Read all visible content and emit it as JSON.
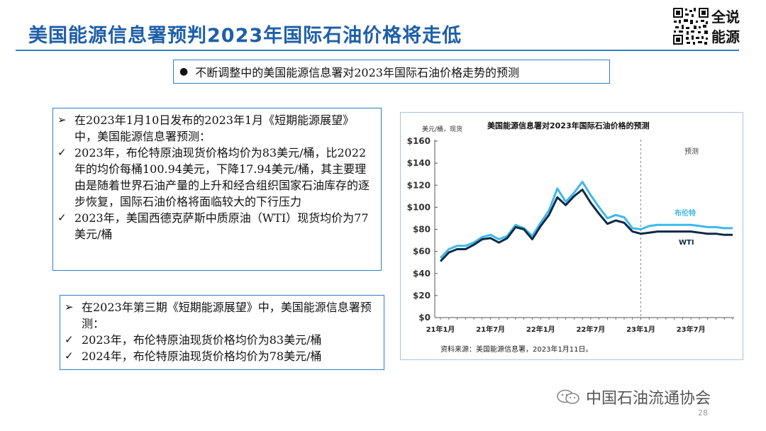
{
  "slide": {
    "title": "美国能源信息署预判2023年国际石油价格将走低",
    "logo_line1": "全说",
    "logo_line2": "能源",
    "subtitle": "不断调整中的美国能源信息署对2023年国际石油价格走势的预测",
    "box1": {
      "items": [
        {
          "mark": "➢",
          "text": "在2023年1月10日发布的2023年1月《短期能源展望》中，美国能源信息署预测："
        },
        {
          "mark": "✓",
          "text": "2023年，布伦特原油现货价格均价为83美元/桶，比2022年的均价每桶100.94美元，下降17.94美元/桶，其主要理由是随着世界石油产量的上升和经合组织国家石油库存的逐步恢复，国际石油价格将面临较大的下行压力"
        },
        {
          "mark": "✓",
          "text": "2023年，美国西德克萨斯中质原油（WTI）现货均价为77美元/桶"
        }
      ]
    },
    "box2": {
      "items": [
        {
          "mark": "➢",
          "text": "在2023年第三期《短期能源展望》中，美国能源信息署预测："
        },
        {
          "mark": "✓",
          "text": "2023年，布伦特原油现货价格均价为83美元/桶"
        },
        {
          "mark": "✓",
          "text": "2024年，布伦特原油现货价格均价为78美元/桶"
        }
      ]
    },
    "footer_brand": "中国石油流通协会",
    "page_number": "28"
  },
  "colors": {
    "title": "#1f5fa8",
    "brent": "#3db8ea",
    "wti": "#0d2a47",
    "forecast_line": "#8a8a8a"
  },
  "chart_data": {
    "type": "line",
    "title": "美国能源信息署对2023年国际石油价格的预测",
    "ylabel": "美元/桶，现货",
    "ylim": [
      0,
      160
    ],
    "yticks": [
      0,
      20,
      40,
      60,
      80,
      100,
      120,
      140,
      160
    ],
    "ytick_labels": [
      "$0",
      "$20",
      "$40",
      "$60",
      "$80",
      "$100",
      "$120",
      "$140",
      "$160"
    ],
    "x": [
      "21-01",
      "21-02",
      "21-03",
      "21-04",
      "21-05",
      "21-06",
      "21-07",
      "21-08",
      "21-09",
      "21-10",
      "21-11",
      "21-12",
      "22-01",
      "22-02",
      "22-03",
      "22-04",
      "22-05",
      "22-06",
      "22-07",
      "22-08",
      "22-09",
      "22-10",
      "22-11",
      "22-12",
      "23-01",
      "23-02",
      "23-03",
      "23-04",
      "23-05",
      "23-06",
      "23-07",
      "23-08",
      "23-09",
      "23-10",
      "23-11",
      "23-12"
    ],
    "xtick_labels": [
      {
        "index": 0,
        "label": "21年1月"
      },
      {
        "index": 6,
        "label": "21年7月"
      },
      {
        "index": 12,
        "label": "22年1月"
      },
      {
        "index": 18,
        "label": "22年7月"
      },
      {
        "index": 24,
        "label": "23年1月"
      },
      {
        "index": 30,
        "label": "23年7月"
      }
    ],
    "forecast_start_index": 24,
    "forecast_label": "预测",
    "series": [
      {
        "name": "布伦特",
        "values": [
          54,
          62,
          65,
          65,
          68,
          73,
          75,
          71,
          74,
          84,
          81,
          74,
          86,
          97,
          117,
          105,
          113,
          123,
          111,
          100,
          90,
          93,
          91,
          81,
          80,
          83,
          84,
          84,
          84,
          84,
          84,
          83,
          82,
          82,
          81,
          81
        ]
      },
      {
        "name": "WTI",
        "values": [
          51,
          59,
          62,
          62,
          66,
          71,
          72,
          68,
          72,
          82,
          80,
          71,
          83,
          93,
          109,
          102,
          110,
          116,
          104,
          94,
          85,
          88,
          86,
          78,
          76,
          77,
          78,
          78,
          78,
          78,
          78,
          77,
          76,
          76,
          75,
          75
        ]
      }
    ],
    "source": "资料来源：美国能源信息署，2023年1月11日。"
  }
}
